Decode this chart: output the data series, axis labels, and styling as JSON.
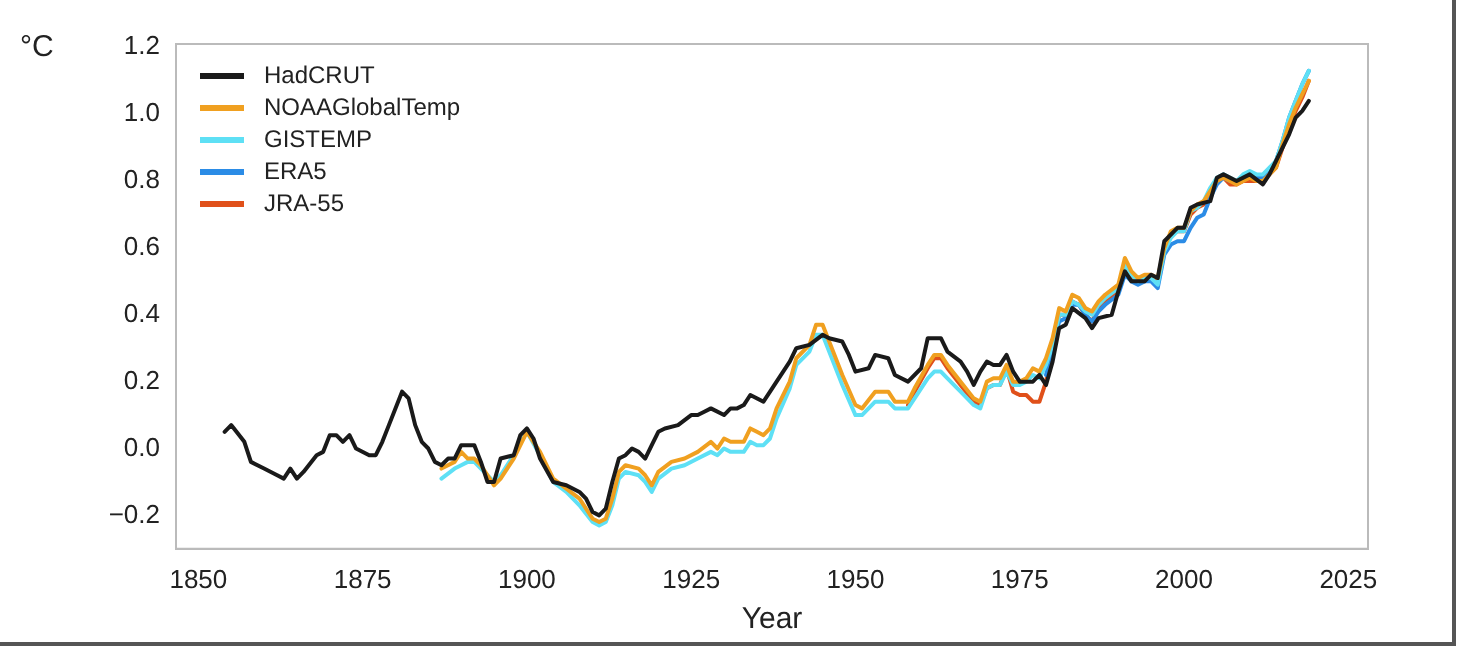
{
  "chart_data": {
    "type": "line",
    "xlabel": "Year",
    "ylabel": "°C",
    "xlim": [
      1846.6,
      2028
    ],
    "xticks": [
      1850,
      1875,
      1900,
      1925,
      1950,
      1975,
      2000,
      2025
    ],
    "ylim": [
      -0.3,
      1.21
    ],
    "yticks": [
      {
        "value": -0.2,
        "label": "−0.2"
      },
      {
        "value": 0,
        "label": "0.0"
      },
      {
        "value": 0.2,
        "label": "0.2"
      },
      {
        "value": 0.4,
        "label": "0.4"
      },
      {
        "value": 0.6,
        "label": "0.6"
      },
      {
        "value": 0.8,
        "label": "0.8"
      },
      {
        "value": 1,
        "label": "1.0"
      },
      {
        "value": 1.2,
        "label": "1.2"
      }
    ],
    "grid": false,
    "legend": "top left",
    "marker": "none",
    "line_style": "solid",
    "series": [
      {
        "name": "HadCRUT",
        "color": "#1a1a1a",
        "x": [
          1854,
          1855,
          1857,
          1858,
          1860,
          1862,
          1863,
          1864,
          1865,
          1866,
          1868,
          1869,
          1870,
          1871,
          1872,
          1873,
          1874,
          1876,
          1877,
          1878,
          1879,
          1881,
          1882,
          1883,
          1884,
          1885,
          1886,
          1887,
          1888,
          1889,
          1890,
          1892,
          1893,
          1894,
          1895,
          1896,
          1898,
          1899,
          1900,
          1901,
          1902,
          1904,
          1906,
          1908,
          1909,
          1910,
          1911,
          1912,
          1913,
          1914,
          1915,
          1916,
          1917,
          1918,
          1919,
          1920,
          1921,
          1923,
          1925,
          1926,
          1927,
          1928,
          1930,
          1931,
          1932,
          1933,
          1934,
          1936,
          1938,
          1940,
          1941,
          1943,
          1945,
          1946,
          1948,
          1949,
          1950,
          1952,
          1953,
          1955,
          1956,
          1958,
          1960,
          1961,
          1963,
          1964,
          1966,
          1967,
          1968,
          1969,
          1970,
          1971,
          1972,
          1973,
          1974,
          1975,
          1977,
          1978,
          1979,
          1980,
          1981,
          1982,
          1983,
          1985,
          1986,
          1987,
          1989,
          1990,
          1991,
          1992,
          1994,
          1995,
          1996,
          1997,
          1999,
          2000,
          2001,
          2002,
          2004,
          2005,
          2006,
          2008,
          2010,
          2012,
          2013,
          2014,
          2016,
          2017,
          2018,
          2019
        ],
        "values": [
          0.05,
          0.07,
          0.02,
          -0.04,
          -0.06,
          -0.08,
          -0.09,
          -0.06,
          -0.09,
          -0.07,
          -0.02,
          -0.01,
          0.04,
          0.04,
          0.02,
          0.04,
          0.0,
          -0.02,
          -0.02,
          0.02,
          0.07,
          0.17,
          0.15,
          0.07,
          0.02,
          0.0,
          -0.04,
          -0.05,
          -0.03,
          -0.03,
          0.01,
          0.01,
          -0.04,
          -0.1,
          -0.1,
          -0.03,
          -0.02,
          0.04,
          0.06,
          0.03,
          -0.03,
          -0.1,
          -0.11,
          -0.13,
          -0.15,
          -0.19,
          -0.2,
          -0.18,
          -0.1,
          -0.03,
          -0.02,
          0.0,
          -0.01,
          -0.03,
          0.01,
          0.05,
          0.06,
          0.07,
          0.1,
          0.1,
          0.11,
          0.12,
          0.1,
          0.12,
          0.12,
          0.13,
          0.16,
          0.14,
          0.2,
          0.26,
          0.3,
          0.31,
          0.34,
          0.33,
          0.32,
          0.28,
          0.23,
          0.24,
          0.28,
          0.27,
          0.22,
          0.2,
          0.24,
          0.33,
          0.33,
          0.29,
          0.26,
          0.23,
          0.19,
          0.23,
          0.26,
          0.25,
          0.25,
          0.28,
          0.23,
          0.2,
          0.2,
          0.22,
          0.19,
          0.26,
          0.36,
          0.37,
          0.42,
          0.39,
          0.36,
          0.39,
          0.4,
          0.47,
          0.53,
          0.5,
          0.5,
          0.52,
          0.51,
          0.62,
          0.66,
          0.66,
          0.72,
          0.73,
          0.74,
          0.81,
          0.82,
          0.8,
          0.82,
          0.79,
          0.82,
          0.86,
          0.94,
          0.99,
          1.01,
          1.04
        ]
      },
      {
        "name": "NOAAGlobalTemp",
        "color": "#f0a020",
        "x": [
          1887,
          1889,
          1890,
          1891,
          1892,
          1893,
          1895,
          1896,
          1898,
          1900,
          1902,
          1904,
          1906,
          1908,
          1910,
          1911,
          1912,
          1913,
          1914,
          1915,
          1917,
          1918,
          1919,
          1920,
          1922,
          1924,
          1926,
          1928,
          1929,
          1930,
          1931,
          1933,
          1934,
          1935,
          1936,
          1937,
          1938,
          1940,
          1941,
          1943,
          1944,
          1945,
          1946,
          1948,
          1950,
          1951,
          1953,
          1954,
          1955,
          1956,
          1958,
          1959,
          1961,
          1962,
          1963,
          1964,
          1966,
          1968,
          1969,
          1970,
          1971,
          1972,
          1973,
          1974,
          1975,
          1976,
          1977,
          1978,
          1979,
          1980,
          1981,
          1982,
          1983,
          1984,
          1985,
          1986,
          1987,
          1988,
          1990,
          1991,
          1992,
          1993,
          1994,
          1995,
          1996,
          1997,
          1998,
          1999,
          2000,
          2001,
          2002,
          2003,
          2004,
          2005,
          2006,
          2007,
          2008,
          2009,
          2010,
          2011,
          2012,
          2013,
          2014,
          2015,
          2016,
          2017,
          2018,
          2019
        ],
        "values": [
          -0.06,
          -0.04,
          -0.01,
          -0.03,
          -0.03,
          -0.05,
          -0.11,
          -0.09,
          -0.03,
          0.05,
          -0.01,
          -0.09,
          -0.12,
          -0.15,
          -0.21,
          -0.22,
          -0.21,
          -0.15,
          -0.07,
          -0.05,
          -0.06,
          -0.08,
          -0.11,
          -0.07,
          -0.04,
          -0.03,
          -0.01,
          0.02,
          0.0,
          0.03,
          0.02,
          0.02,
          0.06,
          0.05,
          0.04,
          0.06,
          0.12,
          0.2,
          0.27,
          0.31,
          0.37,
          0.37,
          0.32,
          0.22,
          0.13,
          0.12,
          0.17,
          0.17,
          0.17,
          0.14,
          0.14,
          0.18,
          0.25,
          0.28,
          0.28,
          0.25,
          0.2,
          0.15,
          0.14,
          0.2,
          0.21,
          0.21,
          0.25,
          0.2,
          0.2,
          0.21,
          0.24,
          0.23,
          0.27,
          0.33,
          0.42,
          0.41,
          0.46,
          0.45,
          0.42,
          0.41,
          0.44,
          0.46,
          0.49,
          0.57,
          0.53,
          0.51,
          0.52,
          0.52,
          0.51,
          0.6,
          0.65,
          0.66,
          0.66,
          0.71,
          0.73,
          0.74,
          0.77,
          0.8,
          0.81,
          0.8,
          0.79,
          0.8,
          0.81,
          0.8,
          0.8,
          0.82,
          0.84,
          0.91,
          0.97,
          1.02,
          1.06,
          1.1
        ]
      },
      {
        "name": "GISTEMP",
        "color": "#5ee0f5",
        "x": [
          1887,
          1889,
          1890,
          1891,
          1892,
          1893,
          1895,
          1896,
          1898,
          1900,
          1902,
          1904,
          1906,
          1908,
          1910,
          1911,
          1912,
          1913,
          1914,
          1915,
          1917,
          1918,
          1919,
          1920,
          1922,
          1924,
          1926,
          1928,
          1929,
          1930,
          1931,
          1933,
          1934,
          1935,
          1936,
          1937,
          1938,
          1940,
          1941,
          1943,
          1944,
          1945,
          1946,
          1948,
          1950,
          1951,
          1953,
          1954,
          1955,
          1956,
          1958,
          1959,
          1961,
          1962,
          1963,
          1964,
          1966,
          1968,
          1969,
          1970,
          1971,
          1972,
          1973,
          1974,
          1975,
          1976,
          1977,
          1978,
          1979,
          1980,
          1981,
          1982,
          1983,
          1984,
          1985,
          1986,
          1987,
          1988,
          1990,
          1991,
          1992,
          1993,
          1994,
          1995,
          1996,
          1997,
          1998,
          1999,
          2000,
          2001,
          2002,
          2003,
          2004,
          2005,
          2006,
          2007,
          2008,
          2009,
          2010,
          2011,
          2012,
          2013,
          2014,
          2015,
          2016,
          2017,
          2018,
          2019
        ],
        "values": [
          -0.09,
          -0.06,
          -0.05,
          -0.04,
          -0.04,
          -0.06,
          -0.1,
          -0.08,
          -0.02,
          0.05,
          -0.02,
          -0.1,
          -0.13,
          -0.17,
          -0.22,
          -0.23,
          -0.22,
          -0.17,
          -0.09,
          -0.07,
          -0.08,
          -0.1,
          -0.13,
          -0.09,
          -0.06,
          -0.05,
          -0.03,
          -0.01,
          -0.02,
          0.0,
          -0.01,
          -0.01,
          0.02,
          0.01,
          0.01,
          0.03,
          0.09,
          0.18,
          0.25,
          0.29,
          0.34,
          0.34,
          0.29,
          0.19,
          0.1,
          0.1,
          0.14,
          0.14,
          0.14,
          0.12,
          0.12,
          0.15,
          0.21,
          0.23,
          0.23,
          0.21,
          0.17,
          0.13,
          0.12,
          0.18,
          0.19,
          0.19,
          0.23,
          0.19,
          0.19,
          0.2,
          0.22,
          0.21,
          0.25,
          0.31,
          0.4,
          0.4,
          0.44,
          0.43,
          0.41,
          0.4,
          0.43,
          0.45,
          0.48,
          0.55,
          0.52,
          0.5,
          0.51,
          0.51,
          0.49,
          0.59,
          0.63,
          0.65,
          0.65,
          0.71,
          0.72,
          0.74,
          0.78,
          0.81,
          0.82,
          0.81,
          0.8,
          0.82,
          0.83,
          0.82,
          0.82,
          0.84,
          0.86,
          0.92,
          0.99,
          1.04,
          1.09,
          1.13
        ]
      },
      {
        "name": "ERA5",
        "color": "#2b8ce6",
        "x": [
          1979,
          1980,
          1981,
          1982,
          1983,
          1984,
          1985,
          1986,
          1987,
          1988,
          1990,
          1991,
          1992,
          1993,
          1994,
          1995,
          1996,
          1997,
          1998,
          1999,
          2000,
          2001,
          2002,
          2003,
          2004,
          2005,
          2006,
          2007,
          2008,
          2009,
          2010,
          2011,
          2012,
          2013,
          2014,
          2015,
          2016,
          2017,
          2018,
          2019
        ],
        "values": [
          0.22,
          0.3,
          0.38,
          0.39,
          0.43,
          0.43,
          0.4,
          0.38,
          0.41,
          0.43,
          0.46,
          0.52,
          0.5,
          0.49,
          0.5,
          0.5,
          0.48,
          0.58,
          0.61,
          0.62,
          0.62,
          0.66,
          0.69,
          0.7,
          0.75,
          0.79,
          0.81,
          0.8,
          0.8,
          0.81,
          0.82,
          0.81,
          0.81,
          0.83,
          0.86,
          0.92,
          0.99,
          1.04,
          1.09,
          1.13
        ]
      },
      {
        "name": "JRA-55",
        "color": "#e0501a",
        "x": [
          1958,
          1959,
          1961,
          1962,
          1963,
          1964,
          1966,
          1968,
          1969,
          1970,
          1971,
          1972,
          1973,
          1974,
          1975,
          1976,
          1977,
          1978,
          1979,
          1980,
          1981,
          1982,
          1983,
          1984,
          1985,
          1986,
          1987,
          1988,
          1990,
          1991,
          1992,
          1993,
          1994,
          1995,
          1996,
          1997,
          1998,
          1999,
          2000,
          2001,
          2002,
          2003,
          2004,
          2005,
          2006,
          2007,
          2008,
          2009,
          2010,
          2011,
          2012,
          2013,
          2014,
          2015,
          2016,
          2017,
          2018,
          2019
        ],
        "values": [
          0.13,
          0.17,
          0.24,
          0.27,
          0.27,
          0.24,
          0.19,
          0.14,
          0.13,
          0.18,
          0.19,
          0.19,
          0.24,
          0.17,
          0.16,
          0.16,
          0.14,
          0.14,
          0.2,
          0.3,
          0.4,
          0.4,
          0.44,
          0.43,
          0.4,
          0.38,
          0.42,
          0.44,
          0.47,
          0.53,
          0.51,
          0.5,
          0.51,
          0.51,
          0.5,
          0.6,
          0.64,
          0.65,
          0.65,
          0.7,
          0.72,
          0.73,
          0.77,
          0.8,
          0.81,
          0.79,
          0.79,
          0.8,
          0.8,
          0.8,
          0.8,
          0.82,
          0.84,
          0.9,
          0.96,
          1.01,
          1.05,
          1.1
        ]
      }
    ]
  }
}
